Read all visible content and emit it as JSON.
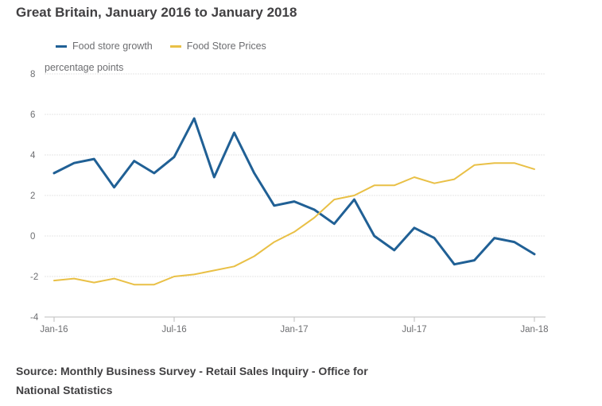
{
  "title": "Great Britain, January 2016 to January 2018",
  "source": "Source: Monthly Business Survey - Retail Sales Inquiry - Office for National Statistics",
  "chart_data": {
    "type": "line",
    "title": "Great Britain, January 2016 to January 2018",
    "ylabel": "percentage points",
    "xlabel": "",
    "ylim": [
      -4,
      8
    ],
    "yticks": [
      8,
      6,
      4,
      2,
      0,
      -2,
      -4
    ],
    "grid": true,
    "legend_position": "top-left",
    "x": [
      "Jan-16",
      "Feb-16",
      "Mar-16",
      "Apr-16",
      "May-16",
      "Jun-16",
      "Jul-16",
      "Aug-16",
      "Sep-16",
      "Oct-16",
      "Nov-16",
      "Dec-16",
      "Jan-17",
      "Feb-17",
      "Mar-17",
      "Apr-17",
      "May-17",
      "Jun-17",
      "Jul-17",
      "Aug-17",
      "Sep-17",
      "Oct-17",
      "Nov-17",
      "Dec-17",
      "Jan-18"
    ],
    "xtick_labels": [
      "Jan-16",
      "Jul-16",
      "Jan-17",
      "Jul-17",
      "Jan-18"
    ],
    "series": [
      {
        "name": "Food store growth",
        "color": "#206095",
        "values": [
          3.1,
          3.6,
          3.8,
          2.4,
          3.7,
          3.1,
          3.9,
          5.8,
          2.9,
          5.1,
          3.1,
          1.5,
          1.7,
          1.3,
          0.6,
          1.8,
          0.0,
          -0.7,
          0.4,
          -0.1,
          -1.4,
          -1.2,
          -0.1,
          -0.3,
          -0.9
        ]
      },
      {
        "name": "Food Store Prices",
        "color": "#e9c046",
        "values": [
          -2.2,
          -2.1,
          -2.3,
          -2.1,
          -2.4,
          -2.4,
          -2.0,
          -1.9,
          -1.7,
          -1.5,
          -1.0,
          -0.3,
          0.2,
          0.9,
          1.8,
          2.0,
          2.5,
          2.5,
          2.9,
          2.6,
          2.8,
          3.5,
          3.6,
          3.6,
          3.3
        ]
      }
    ]
  }
}
